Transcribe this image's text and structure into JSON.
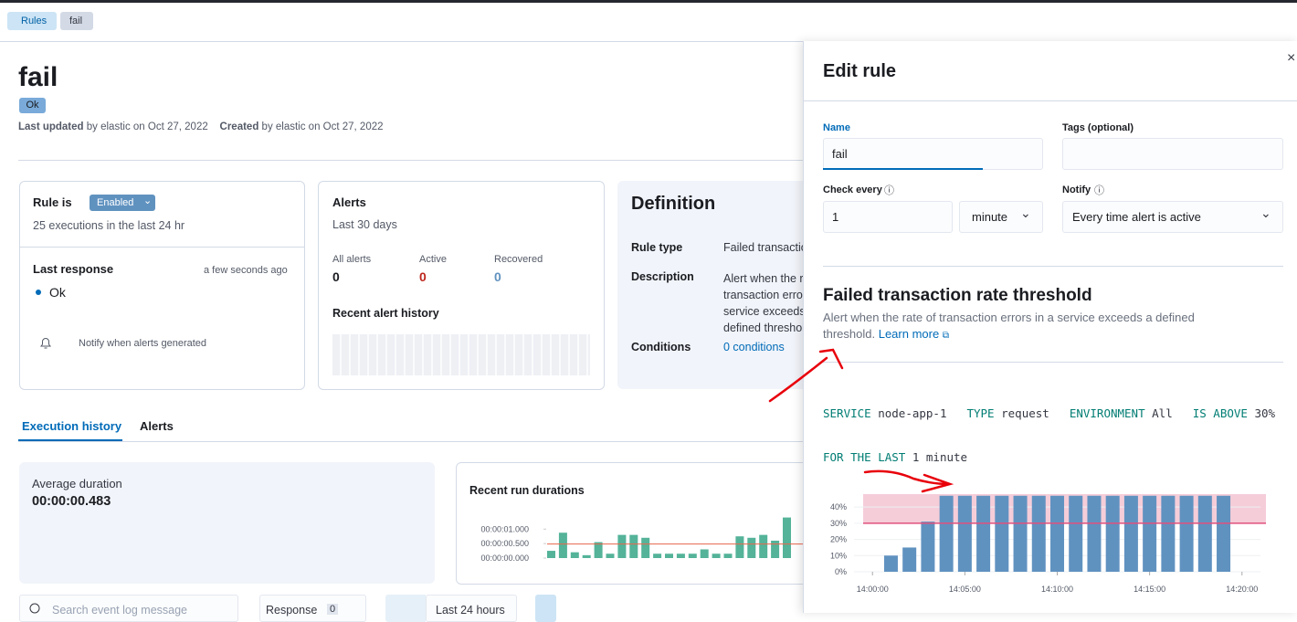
{
  "breadcrumbs": [
    "Rules",
    "fail"
  ],
  "header": {
    "title": "fail",
    "status": "Ok",
    "updated_label": "Last updated",
    "updated_text": "by elastic on Oct 27, 2022",
    "created_label": "Created",
    "created_text": "by elastic on Oct 27, 2022"
  },
  "rule_card": {
    "label": "Rule is",
    "status": "Enabled",
    "executions": "25 executions in the last 24 hr",
    "last_response": "Last response",
    "time": "a few seconds ago",
    "response": "Ok",
    "notify": "Notify when alerts generated"
  },
  "alerts_card": {
    "title": "Alerts",
    "subtitle": "Last 30 days",
    "stats": [
      {
        "label": "All alerts",
        "value": 0
      },
      {
        "label": "Active",
        "value": 0
      },
      {
        "label": "Recovered",
        "value": 0
      }
    ],
    "history_title": "Recent alert history"
  },
  "definition": {
    "title": "Definition",
    "rows": [
      {
        "label": "Rule type",
        "value": "Failed transaction rate threshold"
      },
      {
        "label": "Description",
        "value": "Alert when the rate of transaction errors in a service exceeds a defined threshold."
      },
      {
        "label": "Conditions",
        "value": "0 conditions"
      }
    ]
  },
  "tabs": [
    "Execution history",
    "Alerts"
  ],
  "average": {
    "label": "Average duration",
    "value": "00:00:00.483"
  },
  "run_chart": {
    "type": "bar",
    "title": "Recent run durations",
    "values": [
      250,
      875,
      200,
      100,
      550,
      150,
      800,
      800,
      700,
      150,
      150,
      150,
      150,
      300,
      150,
      150,
      750,
      700,
      800,
      600,
      1400
    ],
    "average_line": 483,
    "ylim": [
      0,
      1450
    ],
    "yticks": [
      {
        "value": 1000,
        "label": "00:00:01.000"
      },
      {
        "value": 500,
        "label": "00:00:00.500"
      },
      {
        "value": 0,
        "label": "00:00:00.000"
      }
    ],
    "color": "#54b399",
    "line_color": "#e7664c"
  },
  "controls": {
    "search": "Search event log message",
    "response": "Response",
    "response_count": 0,
    "date": "Last 24 hours"
  },
  "flyout": {
    "title": "Edit rule",
    "name_label": "Name",
    "name_value": "fail",
    "tags_label": "Tags (optional)",
    "check_label": "Check every",
    "check_value": "1",
    "check_unit": "minute",
    "notify_label": "Notify",
    "notify_value": "Every time alert is active",
    "section_title": "Failed transaction rate threshold",
    "section_desc": "Alert when the rate of transaction errors in a service exceeds a defined",
    "section_desc2": "threshold.",
    "learn_more": "Learn more",
    "expression": [
      {
        "key": "SERVICE",
        "value": "node-app-1"
      },
      {
        "key": "TYPE",
        "value": "request"
      },
      {
        "key": "ENVIRONMENT",
        "value": "All"
      },
      {
        "key": "IS ABOVE",
        "value": "30%"
      }
    ],
    "window_key": "FOR THE LAST",
    "window_value": "1 minute"
  },
  "threshold_chart": {
    "type": "bar",
    "x": [
      "14:01:00",
      "14:02:00",
      "14:03:00",
      "14:04:00",
      "14:05:00",
      "14:06:00",
      "14:07:00",
      "14:08:00",
      "14:09:00",
      "14:10:00",
      "14:11:00",
      "14:12:00",
      "14:13:00",
      "14:14:00",
      "14:15:00",
      "14:16:00",
      "14:17:00",
      "14:18:00",
      "14:19:00"
    ],
    "values": [
      10,
      15,
      31,
      47,
      47,
      47,
      47,
      47,
      47,
      47,
      47,
      47,
      47,
      47,
      47,
      47,
      47,
      47,
      47
    ],
    "threshold": 30,
    "xlim": [
      "13:59:00",
      "14:21:00"
    ],
    "ylim": [
      0,
      48
    ],
    "yticks": [
      {
        "value": 0,
        "label": "0%"
      },
      {
        "value": 10,
        "label": "10%"
      },
      {
        "value": 20,
        "label": "20%"
      },
      {
        "value": 30,
        "label": "30%"
      },
      {
        "value": 40,
        "label": "40%"
      }
    ],
    "xticks": [
      "14:00:00",
      "14:05:00",
      "14:10:00",
      "14:15:00",
      "14:20:00"
    ],
    "color": "#6092c0",
    "threshold_color": "#e0507c",
    "band_color": "#f5cdd9"
  }
}
